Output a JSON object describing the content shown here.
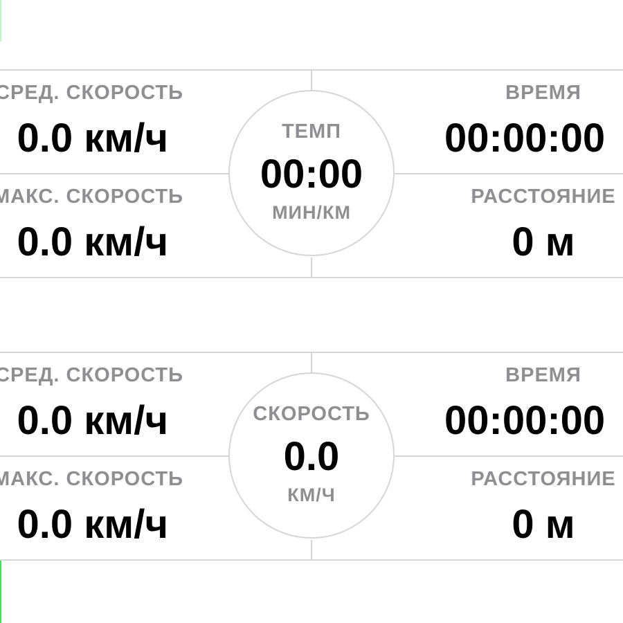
{
  "panels": [
    {
      "center": {
        "label": "ТЕМП",
        "value": "00:00",
        "unit": "МИН/КМ"
      },
      "left_top": {
        "label": "СРЕД. СКОРОСТЬ",
        "value": "0.0 км/ч"
      },
      "left_bottom": {
        "label": "МАКС. СКОРОСТЬ",
        "value": "0.0 км/ч"
      },
      "right_top": {
        "label": "ВРЕМЯ",
        "value": "00:00:00"
      },
      "right_bottom": {
        "label": "РАССТОЯНИЕ",
        "value": "0 м"
      }
    },
    {
      "center": {
        "label": "СКОРОСТЬ",
        "value": "0.0",
        "unit": "КМ/Ч"
      },
      "left_top": {
        "label": "СРЕД. СКОРОСТЬ",
        "value": "0.0 км/ч"
      },
      "left_bottom": {
        "label": "МАКС. СКОРОСТЬ",
        "value": "0.0 км/ч"
      },
      "right_top": {
        "label": "ВРЕМЯ",
        "value": "00:00:00"
      },
      "right_bottom": {
        "label": "РАССТОЯНИЕ",
        "value": "0 м"
      }
    }
  ],
  "colors": {
    "label_gray": "#8e8e93",
    "value_black": "#000000",
    "divider": "#d6d6d6",
    "accent_green": "#4cd964"
  }
}
